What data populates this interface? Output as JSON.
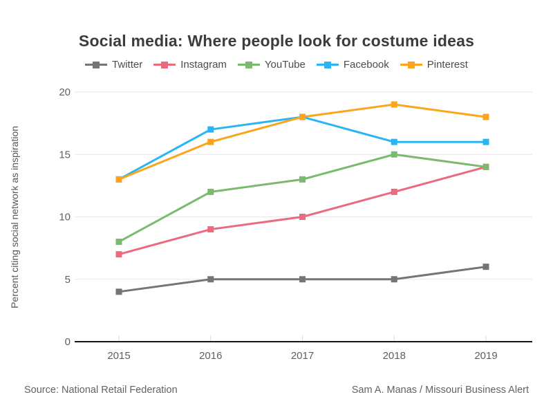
{
  "chart_data": {
    "type": "line",
    "title": "Social media: Where people look for costume ideas",
    "categories": [
      "2015",
      "2016",
      "2017",
      "2018",
      "2019"
    ],
    "series": [
      {
        "name": "Twitter",
        "color": "#757575",
        "values": [
          4,
          5,
          5,
          5,
          6
        ]
      },
      {
        "name": "Instagram",
        "color": "#ec6a7e",
        "values": [
          7,
          9,
          10,
          12,
          14
        ]
      },
      {
        "name": "YouTube",
        "color": "#79ba6e",
        "values": [
          8,
          12,
          13,
          15,
          14
        ]
      },
      {
        "name": "Facebook",
        "color": "#29b5f5",
        "values": [
          13,
          17,
          18,
          16,
          16
        ]
      },
      {
        "name": "Pinterest",
        "color": "#fba41c",
        "values": [
          13,
          16,
          18,
          19,
          18
        ]
      }
    ],
    "xlabel": "",
    "ylabel": "Percent citing social network as inspiration",
    "ylim": [
      0,
      20
    ],
    "yticks": [
      0,
      5,
      10,
      15,
      20
    ],
    "grid": true,
    "legend_position": "top",
    "marker": "square"
  },
  "footer": {
    "source": "Source: National Retail Federation",
    "credit": "Sam A. Manas / Missouri Business Alert"
  },
  "colors": {
    "background": "#ffffff",
    "grid": "#e7e7e7",
    "axis": "#141414",
    "tick_text": "#5f5f5f",
    "tick_mark": "#d9d9d9"
  }
}
